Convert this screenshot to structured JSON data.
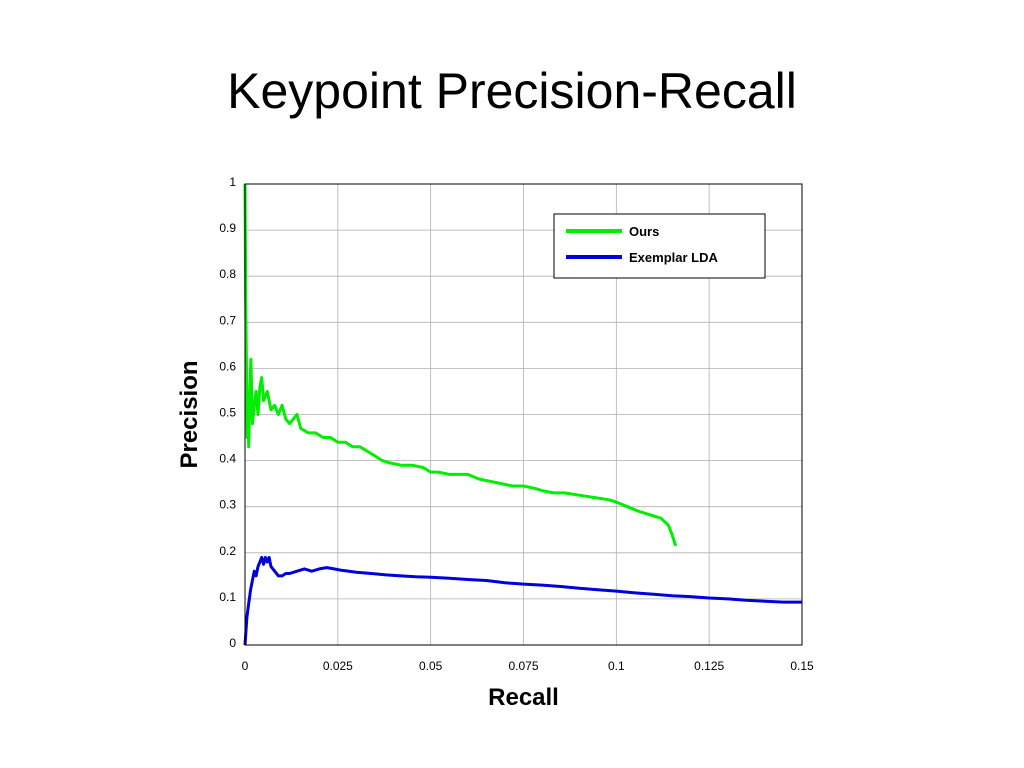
{
  "slide": {
    "title": "Keypoint Precision-Recall"
  },
  "colors": {
    "ours": "#00ee00",
    "exemplar": "#0000dd",
    "grid": "#b0b0b0",
    "frame": "#000000"
  },
  "chart_data": {
    "type": "line",
    "xlabel": "Recall",
    "ylabel": "Precision",
    "xlim": [
      0,
      0.15
    ],
    "ylim": [
      0,
      1
    ],
    "xticks": [
      0,
      0.025,
      0.05,
      0.075,
      0.1,
      0.125,
      0.15
    ],
    "xtick_labels": [
      "0",
      "0.025",
      "0.05",
      "0.075",
      "0.1",
      "0.125",
      "0.15"
    ],
    "yticks": [
      0,
      0.1,
      0.2,
      0.3,
      0.4,
      0.5,
      0.6,
      0.7,
      0.8,
      0.9,
      1
    ],
    "ytick_labels": [
      "0",
      "0.1",
      "0.2",
      "0.3",
      "0.4",
      "0.5",
      "0.6",
      "0.7",
      "0.8",
      "0.9",
      "1"
    ],
    "grid": true,
    "legend_position": "top-right",
    "series": [
      {
        "name": "Ours",
        "x": [
          0,
          0.0002,
          0.0004,
          0.0006,
          0.0008,
          0.001,
          0.0013,
          0.0016,
          0.002,
          0.0025,
          0.003,
          0.0035,
          0.004,
          0.0045,
          0.005,
          0.006,
          0.007,
          0.008,
          0.009,
          0.01,
          0.011,
          0.012,
          0.013,
          0.014,
          0.015,
          0.017,
          0.019,
          0.021,
          0.023,
          0.025,
          0.027,
          0.029,
          0.031,
          0.033,
          0.035,
          0.037,
          0.039,
          0.042,
          0.045,
          0.048,
          0.05,
          0.052,
          0.055,
          0.058,
          0.06,
          0.063,
          0.066,
          0.069,
          0.072,
          0.075,
          0.078,
          0.08,
          0.083,
          0.086,
          0.09,
          0.094,
          0.098,
          0.1,
          0.103,
          0.106,
          0.108,
          0.11,
          0.112,
          0.114,
          0.115,
          0.116
        ],
        "y": [
          1.0,
          0.75,
          0.6,
          0.45,
          0.5,
          0.43,
          0.55,
          0.62,
          0.48,
          0.52,
          0.55,
          0.5,
          0.56,
          0.58,
          0.53,
          0.55,
          0.51,
          0.52,
          0.5,
          0.52,
          0.49,
          0.48,
          0.49,
          0.5,
          0.47,
          0.46,
          0.46,
          0.45,
          0.45,
          0.44,
          0.44,
          0.43,
          0.43,
          0.42,
          0.41,
          0.4,
          0.395,
          0.39,
          0.39,
          0.385,
          0.375,
          0.375,
          0.37,
          0.37,
          0.37,
          0.36,
          0.355,
          0.35,
          0.345,
          0.345,
          0.34,
          0.335,
          0.33,
          0.33,
          0.325,
          0.32,
          0.315,
          0.31,
          0.3,
          0.29,
          0.285,
          0.28,
          0.275,
          0.26,
          0.24,
          0.215
        ]
      },
      {
        "name": "Exemplar LDA",
        "x": [
          0,
          0.0005,
          0.001,
          0.0015,
          0.002,
          0.0025,
          0.003,
          0.0035,
          0.004,
          0.0045,
          0.005,
          0.0055,
          0.006,
          0.0065,
          0.007,
          0.008,
          0.009,
          0.01,
          0.011,
          0.012,
          0.014,
          0.016,
          0.018,
          0.02,
          0.022,
          0.024,
          0.026,
          0.03,
          0.034,
          0.038,
          0.042,
          0.046,
          0.05,
          0.055,
          0.06,
          0.065,
          0.07,
          0.075,
          0.08,
          0.085,
          0.09,
          0.095,
          0.1,
          0.105,
          0.11,
          0.115,
          0.12,
          0.125,
          0.13,
          0.135,
          0.14,
          0.145,
          0.15
        ],
        "y": [
          0,
          0.06,
          0.09,
          0.12,
          0.14,
          0.16,
          0.15,
          0.17,
          0.18,
          0.19,
          0.175,
          0.19,
          0.18,
          0.19,
          0.17,
          0.16,
          0.15,
          0.15,
          0.155,
          0.155,
          0.16,
          0.165,
          0.16,
          0.165,
          0.168,
          0.165,
          0.162,
          0.158,
          0.155,
          0.152,
          0.15,
          0.148,
          0.147,
          0.145,
          0.142,
          0.14,
          0.135,
          0.132,
          0.13,
          0.127,
          0.123,
          0.12,
          0.117,
          0.113,
          0.11,
          0.107,
          0.105,
          0.102,
          0.1,
          0.097,
          0.095,
          0.093,
          0.093
        ]
      }
    ]
  }
}
